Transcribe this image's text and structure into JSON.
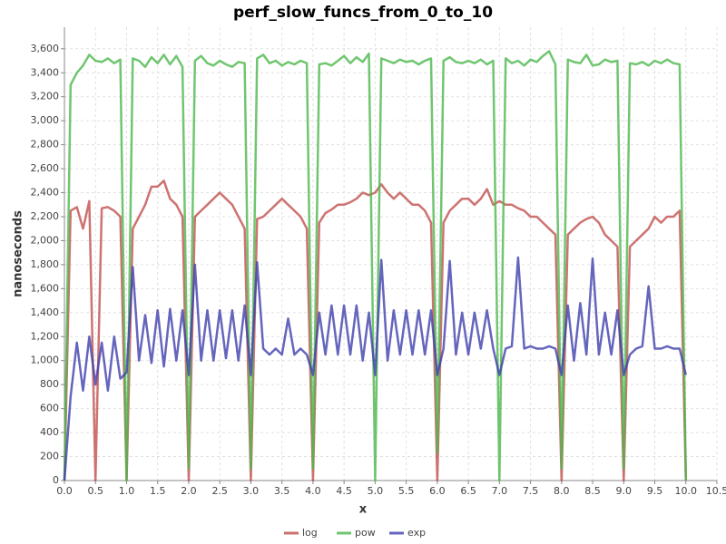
{
  "chart_data": {
    "type": "line",
    "title": "perf_slow_funcs_from_0_to_10",
    "x_label": "x",
    "y_label": "nanoseconds",
    "x": [
      0,
      0.1,
      0.2,
      0.3,
      0.4,
      0.5,
      0.6,
      0.7,
      0.8,
      0.9,
      1,
      1.1,
      1.2,
      1.3,
      1.4,
      1.5,
      1.6,
      1.7,
      1.8,
      1.9,
      2,
      2.1,
      2.2,
      2.3,
      2.4,
      2.5,
      2.6,
      2.7,
      2.8,
      2.9,
      3,
      3.1,
      3.2,
      3.3,
      3.4,
      3.5,
      3.6,
      3.7,
      3.8,
      3.9,
      4,
      4.1,
      4.2,
      4.3,
      4.4,
      4.5,
      4.6,
      4.7,
      4.8,
      4.9,
      5,
      5.1,
      5.2,
      5.3,
      5.4,
      5.5,
      5.6,
      5.7,
      5.8,
      5.9,
      6,
      6.1,
      6.2,
      6.3,
      6.4,
      6.5,
      6.6,
      6.7,
      6.8,
      6.9,
      7,
      7.1,
      7.2,
      7.3,
      7.4,
      7.5,
      7.6,
      7.7,
      7.8,
      7.9,
      8,
      8.1,
      8.2,
      8.3,
      8.4,
      8.5,
      8.6,
      8.7,
      8.8,
      8.9,
      9,
      9.1,
      9.2,
      9.3,
      9.4,
      9.5,
      9.6,
      9.7,
      9.8,
      9.9,
      10
    ],
    "series": [
      {
        "name": "log",
        "color": "#c0504d",
        "values": [
          0,
          2250,
          2280,
          2100,
          2330,
          0,
          2270,
          2280,
          2250,
          2200,
          0,
          2100,
          2200,
          2300,
          2450,
          2450,
          2500,
          2350,
          2300,
          2200,
          0,
          2200,
          2250,
          2300,
          2350,
          2400,
          2350,
          2300,
          2200,
          2100,
          0,
          2180,
          2200,
          2250,
          2300,
          2350,
          2300,
          2250,
          2200,
          2100,
          0,
          2150,
          2230,
          2260,
          2300,
          2300,
          2320,
          2350,
          2400,
          2380,
          2400,
          2470,
          2400,
          2350,
          2400,
          2350,
          2300,
          2300,
          2250,
          2150,
          0,
          2150,
          2250,
          2300,
          2350,
          2350,
          2300,
          2350,
          2430,
          2300,
          2330,
          2300,
          2300,
          2270,
          2250,
          2200,
          2200,
          2150,
          2100,
          2050,
          0,
          2050,
          2100,
          2150,
          2180,
          2200,
          2150,
          2050,
          2000,
          1950,
          0,
          1950,
          2000,
          2050,
          2100,
          2200,
          2150,
          2200,
          2200,
          2250,
          0
        ]
      },
      {
        "name": "pow",
        "color": "#4cb84c",
        "values": [
          0,
          3300,
          3400,
          3460,
          3550,
          3500,
          3490,
          3520,
          3480,
          3510,
          0,
          3520,
          3500,
          3450,
          3530,
          3480,
          3550,
          3470,
          3540,
          3450,
          100,
          3500,
          3540,
          3480,
          3460,
          3500,
          3470,
          3450,
          3490,
          3480,
          100,
          3520,
          3550,
          3480,
          3500,
          3460,
          3490,
          3470,
          3500,
          3480,
          100,
          3470,
          3480,
          3460,
          3500,
          3540,
          3480,
          3530,
          3490,
          3560,
          0,
          3520,
          3500,
          3480,
          3510,
          3490,
          3500,
          3470,
          3500,
          3520,
          230,
          3500,
          3530,
          3490,
          3480,
          3500,
          3480,
          3510,
          3470,
          3500,
          0,
          3520,
          3480,
          3500,
          3460,
          3510,
          3490,
          3540,
          3580,
          3470,
          100,
          3510,
          3490,
          3480,
          3550,
          3460,
          3470,
          3510,
          3490,
          3500,
          100,
          3480,
          3470,
          3490,
          3460,
          3500,
          3480,
          3510,
          3480,
          3470,
          0
        ]
      },
      {
        "name": "exp",
        "color": "#3f3fae",
        "values": [
          0,
          700,
          1150,
          750,
          1200,
          800,
          1150,
          750,
          1200,
          850,
          900,
          1780,
          1000,
          1380,
          980,
          1420,
          950,
          1430,
          1000,
          1420,
          880,
          1800,
          1000,
          1420,
          1000,
          1420,
          1020,
          1420,
          1000,
          1460,
          880,
          1820,
          1100,
          1050,
          1100,
          1050,
          1350,
          1050,
          1100,
          1050,
          880,
          1400,
          1050,
          1460,
          1050,
          1460,
          1050,
          1460,
          1000,
          1400,
          880,
          1840,
          1000,
          1420,
          1050,
          1420,
          1050,
          1420,
          1050,
          1420,
          880,
          1100,
          1830,
          1050,
          1400,
          1050,
          1400,
          1100,
          1420,
          1100,
          880,
          1100,
          1120,
          1860,
          1100,
          1120,
          1100,
          1100,
          1120,
          1100,
          880,
          1460,
          1000,
          1480,
          1050,
          1850,
          1050,
          1400,
          1050,
          1420,
          880,
          1050,
          1100,
          1120,
          1620,
          1100,
          1100,
          1120,
          1100,
          1100,
          880
        ]
      }
    ],
    "xlim": [
      0,
      10.5
    ],
    "xticks": [
      {
        "value": 0,
        "label": "0.0"
      },
      0.5,
      {
        "value": 1,
        "label": "1.0"
      },
      1.5,
      {
        "value": 2,
        "label": "2.0"
      },
      2.5,
      {
        "value": 3,
        "label": "3.0"
      },
      3.5,
      {
        "value": 4,
        "label": "4.0"
      },
      4.5,
      {
        "value": 5,
        "label": "5.0"
      },
      5.5,
      {
        "value": 6,
        "label": "6.0"
      },
      6.5,
      {
        "value": 7,
        "label": "7.0"
      },
      7.5,
      {
        "value": 8,
        "label": "8.0"
      },
      8.5,
      {
        "value": 9,
        "label": "9.0"
      },
      9.5,
      {
        "value": 10,
        "label": "10.0"
      },
      10.5
    ],
    "ylim": [
      0,
      3780
    ],
    "yticks": [
      0,
      200,
      400,
      600,
      800,
      {
        "value": 1000,
        "label": "1,000"
      },
      {
        "value": 1200,
        "label": "1,200"
      },
      {
        "value": 1400,
        "label": "1,400"
      },
      {
        "value": 1600,
        "label": "1,600"
      },
      {
        "value": 1800,
        "label": "1,800"
      },
      {
        "value": 2000,
        "label": "2,000"
      },
      {
        "value": 2200,
        "label": "2,200"
      },
      {
        "value": 2400,
        "label": "2,400"
      },
      {
        "value": 2600,
        "label": "2,600"
      },
      {
        "value": 2800,
        "label": "2,800"
      },
      {
        "value": 3000,
        "label": "3,000"
      },
      {
        "value": 3200,
        "label": "3,200"
      },
      {
        "value": 3400,
        "label": "3,400"
      },
      {
        "value": 3600,
        "label": "3,600"
      }
    ],
    "grid": true,
    "legend": "bottom"
  }
}
